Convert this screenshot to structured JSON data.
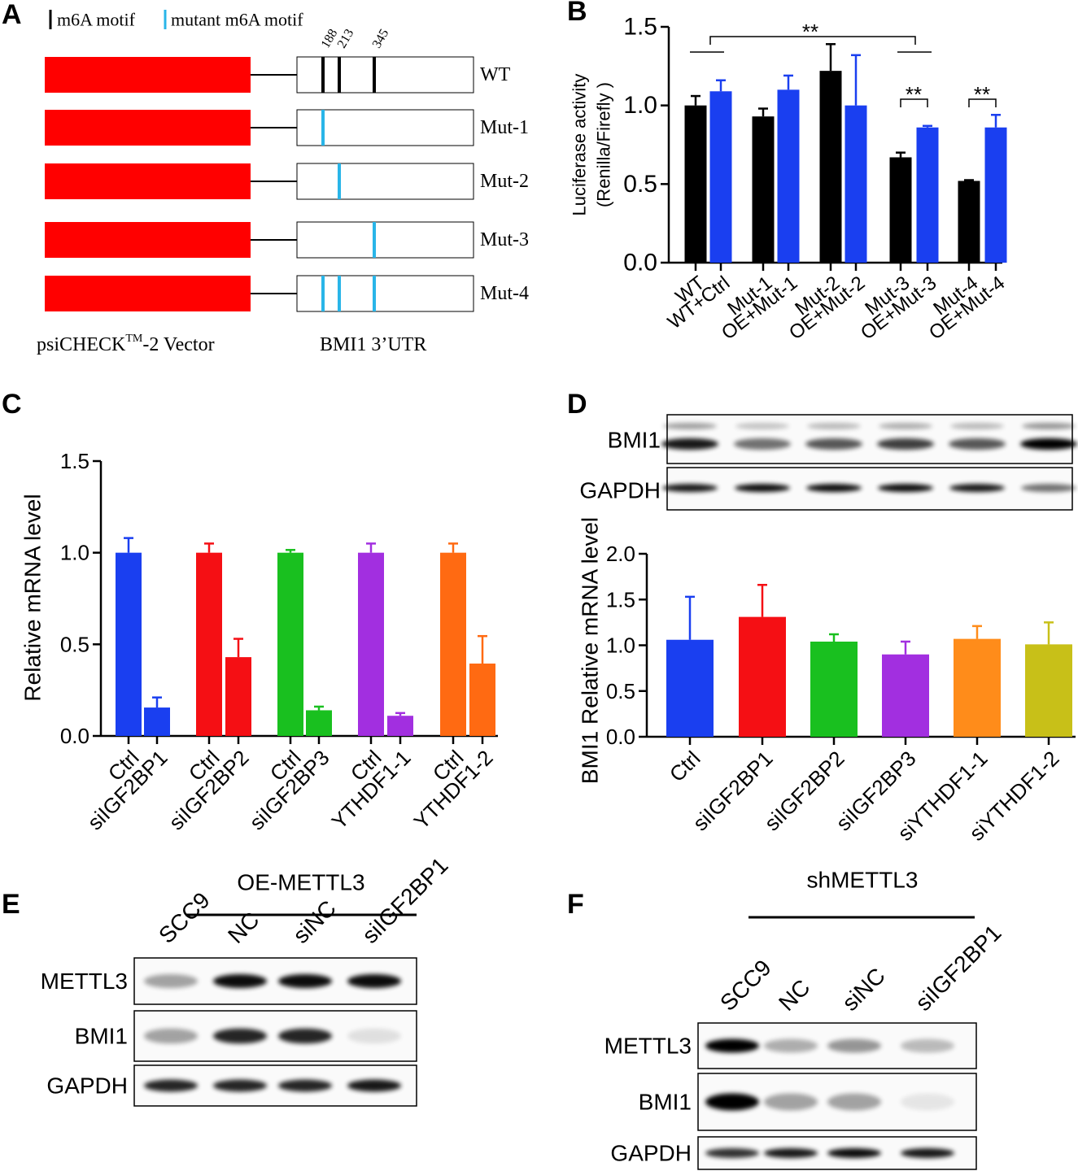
{
  "panel_labels": [
    "A",
    "B",
    "C",
    "D",
    "E",
    "F"
  ],
  "panel_a": {
    "legend": [
      "m6A motif",
      "mutant m6A motif"
    ],
    "sites": [
      188,
      213,
      345
    ],
    "constructs": [
      "WT",
      "Mut-1",
      "Mut-2",
      "Mut-3",
      "Mut-4"
    ],
    "vector_label": "psiCHECK",
    "vector_superscript": "TM",
    "vector_suffix": "-2 Vector",
    "utr_label": "BMI1 3’UTR"
  },
  "chart_data": [
    {
      "type": "bar",
      "ylabel": [
        "Luciferase activity",
        "(Renilla/Firefly )"
      ],
      "categories": [
        "WT",
        "WT+Ctrl",
        "Mut-1",
        "OE+Mut-1",
        "Mut-2",
        "OE+Mut-2",
        "Mut-3",
        "OE+Mut-3",
        "Mut-4",
        "OE+Mut-4"
      ],
      "values": [
        1.0,
        1.09,
        0.93,
        1.1,
        1.22,
        1.0,
        0.67,
        0.86,
        0.52,
        0.86
      ],
      "errors": [
        0.06,
        0.07,
        0.05,
        0.09,
        0.17,
        0.32,
        0.03,
        0.01,
        0.005,
        0.08
      ],
      "colors": [
        "#000000",
        "#1a3ff0",
        "#000000",
        "#1a3ff0",
        "#000000",
        "#1a3ff0",
        "#000000",
        "#1a3ff0",
        "#000000",
        "#1a3ff0"
      ],
      "ylim": [
        0,
        1.5
      ],
      "yticks": [
        {
          "value": 0,
          "label": "0.0"
        },
        0.5,
        {
          "value": 1,
          "label": "1.0"
        },
        1.5
      ],
      "annotations": [
        "**",
        "**",
        "**"
      ]
    },
    {
      "type": "bar",
      "ylabel": "Relative mRNA level",
      "categories": [
        "Ctrl",
        "siIGF2BP1",
        "Ctrl",
        "siIGF2BP2",
        "Ctrl",
        "siIGF2BP3",
        "Ctrl",
        "YTHDF1-1",
        "Ctrl",
        "YTHDF1-2"
      ],
      "values": [
        1.0,
        0.155,
        1.0,
        0.43,
        1.0,
        0.14,
        1.0,
        0.11,
        1.0,
        0.395
      ],
      "errors": [
        0.08,
        0.055,
        0.05,
        0.1,
        0.015,
        0.02,
        0.05,
        0.015,
        0.05,
        0.15
      ],
      "colors": [
        "#1a3ff0",
        "#1a3ff0",
        "#f50f14",
        "#f50f14",
        "#19c01f",
        "#19c01f",
        "#a22fe0",
        "#a22fe0",
        "#ff6a12",
        "#ff6a12"
      ],
      "ylim": [
        0,
        1.5
      ],
      "yticks": [
        {
          "value": 0,
          "label": "0.0"
        },
        0.5,
        {
          "value": 1,
          "label": "1.0"
        },
        1.5
      ]
    },
    {
      "type": "bar",
      "ylabel": "BMI1 Relative mRNA level",
      "categories": [
        "Ctrl",
        "siIGF2BP1",
        "siIGF2BP2",
        "siIGF2BP3",
        "siYTHDF1-1",
        "siYTHDF1-2"
      ],
      "values": [
        1.06,
        1.31,
        1.04,
        0.9,
        1.07,
        1.01
      ],
      "errors": [
        0.47,
        0.35,
        0.08,
        0.14,
        0.14,
        0.24
      ],
      "colors": [
        "#1a3ff0",
        "#f50f14",
        "#19c01f",
        "#a22fe0",
        "#ff8c1a",
        "#c8c018"
      ],
      "ylim": [
        0,
        2
      ],
      "yticks": [
        {
          "value": 0,
          "label": "0.0"
        },
        0.5,
        {
          "value": 1,
          "label": "1.0"
        },
        1.5,
        {
          "value": 2,
          "label": "2.0"
        }
      ]
    }
  ],
  "panel_d_blot": {
    "rows": [
      "BMI1",
      "GAPDH"
    ]
  },
  "panel_e": {
    "header": "OE-METTL3",
    "lanes": [
      "SCC9",
      "NC",
      "siNC",
      "siIGF2BP1"
    ],
    "rows": [
      "METTL3",
      "BMI1",
      "GAPDH"
    ]
  },
  "panel_f": {
    "header": "shMETTL3",
    "lanes": [
      "SCC9",
      "NC",
      "siNC",
      "siIGF2BP1"
    ],
    "rows": [
      "METTL3",
      "BMI1",
      "GAPDH"
    ]
  }
}
